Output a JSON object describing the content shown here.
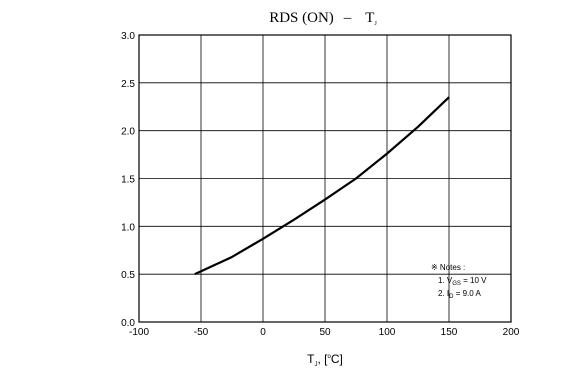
{
  "chart_data": {
    "type": "line",
    "title": "RDS(ON) - TJ",
    "title_parts": {
      "main": "RDS (ON)",
      "dash": "–",
      "var": "T",
      "var_sub": "J"
    },
    "xlabel_parts": {
      "var": "T",
      "var_sub": "J",
      "sep": ", [",
      "deg": "o",
      "unit": "C]"
    },
    "xlim": [
      -100,
      200
    ],
    "ylim": [
      0.0,
      3.0
    ],
    "x_ticks": [
      -100,
      -50,
      0,
      50,
      100,
      150,
      200
    ],
    "x_tick_labels": [
      "-100",
      "-50",
      "0",
      "50",
      "100",
      "150",
      "200"
    ],
    "y_ticks": [
      0.0,
      0.5,
      1.0,
      1.5,
      2.0,
      2.5,
      3.0
    ],
    "y_tick_labels": [
      "0.0",
      "0.5",
      "1.0",
      "1.5",
      "2.0",
      "2.5",
      "3.0"
    ],
    "grid": true,
    "series": [
      {
        "color": "#000000",
        "x": [
          -55,
          -25,
          0,
          25,
          50,
          75,
          100,
          125,
          150
        ],
        "y": [
          0.5,
          0.68,
          0.87,
          1.07,
          1.28,
          1.5,
          1.76,
          2.04,
          2.35
        ]
      }
    ],
    "notes": {
      "heading": "※ Notes :",
      "line1": {
        "prefix": "1. V",
        "sub": "GS",
        "suffix": " = 10 V"
      },
      "line2": {
        "prefix": "2. I",
        "sub": "D",
        "suffix": " = 9.0 A"
      }
    }
  }
}
